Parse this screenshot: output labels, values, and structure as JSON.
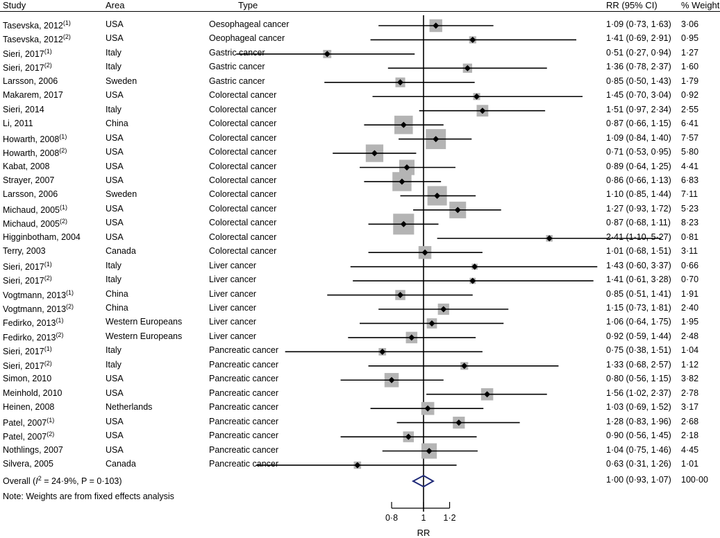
{
  "headers": {
    "study": "Study",
    "area": "Area",
    "type": "Type",
    "rr_ci": "RR (95% CI)",
    "weight": "% Weight"
  },
  "rows": [
    {
      "study": "Tasevska, 2012",
      "sup": "(1)",
      "area": "USA",
      "type": "Oesophageal cancer",
      "rr": "1·09 (0·73, 1·63)",
      "weight": "3·06"
    },
    {
      "study": "Tasevska, 2012",
      "sup": "(2)",
      "area": "USA",
      "type": "Oeophageal cancer",
      "rr": "1·41 (0·69, 2·91)",
      "weight": "0·95"
    },
    {
      "study": "Sieri, 2017",
      "sup": "(1)",
      "area": "Italy",
      "type": "Gastric cancer",
      "rr": "0·51 (0·27, 0·94)",
      "weight": "1·27"
    },
    {
      "study": "Sieri, 2017",
      "sup": "(2)",
      "area": "Italy",
      "type": "Gastric cancer",
      "rr": "1·36 (0·78, 2·37)",
      "weight": "1·60"
    },
    {
      "study": "Larsson, 2006",
      "sup": "",
      "area": "Sweden",
      "type": "Gastric cancer",
      "rr": "0·85 (0·50, 1·43)",
      "weight": "1·79"
    },
    {
      "study": "Makarem, 2017",
      "sup": "",
      "area": "USA",
      "type": "Colorectal cancer",
      "rr": "1·45 (0·70, 3·04)",
      "weight": "0·92"
    },
    {
      "study": "Sieri, 2014",
      "sup": "",
      "area": "Italy",
      "type": "Colorectal cancer",
      "rr": "1·51 (0·97, 2·34)",
      "weight": "2·55"
    },
    {
      "study": "Li, 2011",
      "sup": "",
      "area": "China",
      "type": "Colorectal cancer",
      "rr": "0·87 (0·66, 1·15)",
      "weight": "6·41"
    },
    {
      "study": "Howarth, 2008",
      "sup": "(1)",
      "area": "USA",
      "type": "Colorectal cancer",
      "rr": "1·09 (0·84, 1·40)",
      "weight": "7·57"
    },
    {
      "study": "Howarth, 2008",
      "sup": "(2)",
      "area": "USA",
      "type": "Colorectal cancer",
      "rr": "0·71 (0·53, 0·95)",
      "weight": "5·80"
    },
    {
      "study": "Kabat, 2008",
      "sup": "",
      "area": "USA",
      "type": "Colorectal cancer",
      "rr": "0·89 (0·64, 1·25)",
      "weight": "4·41"
    },
    {
      "study": "Strayer, 2007",
      "sup": "",
      "area": "USA",
      "type": "Colorectal cancer",
      "rr": "0·86 (0·66, 1·13)",
      "weight": "6·83"
    },
    {
      "study": "Larsson, 2006",
      "sup": "",
      "area": "Sweden",
      "type": "Colorectal cancer",
      "rr": "1·10 (0·85, 1·44)",
      "weight": "7·11"
    },
    {
      "study": "Michaud, 2005",
      "sup": "(1)",
      "area": "USA",
      "type": "Colorectal cancer",
      "rr": "1·27 (0·93, 1·72)",
      "weight": "5·23"
    },
    {
      "study": "Michaud, 2005",
      "sup": "(2)",
      "area": "USA",
      "type": "Colorectal cancer",
      "rr": "0·87 (0·68, 1·11)",
      "weight": "8·23"
    },
    {
      "study": "Higginbotham, 2004",
      "sup": "",
      "area": "USA",
      "type": "Colorectal cancer",
      "rr": "2·41 (1·10, 5·27)",
      "weight": "0·81"
    },
    {
      "study": "Terry, 2003",
      "sup": "",
      "area": "Canada",
      "type": "Colorectal cancer",
      "rr": "1·01 (0·68, 1·51)",
      "weight": "3·11"
    },
    {
      "study": "Sieri, 2017",
      "sup": "(1)",
      "area": "Italy",
      "type": "Liver cancer",
      "rr": "1·43 (0·60, 3·37)",
      "weight": "0·66"
    },
    {
      "study": "Sieri, 2017",
      "sup": "(2)",
      "area": "Italy",
      "type": "Liver cancer",
      "rr": "1·41 (0·61, 3·28)",
      "weight": "0·70"
    },
    {
      "study": "Vogtmann, 2013",
      "sup": "(1)",
      "area": "China",
      "type": "Liver cancer",
      "rr": "0·85 (0·51, 1·41)",
      "weight": "1·91"
    },
    {
      "study": "Vogtmann, 2013",
      "sup": "(2)",
      "area": "China",
      "type": "Liver cancer",
      "rr": "1·15 (0·73, 1·81)",
      "weight": "2·40"
    },
    {
      "study": "Fedirko, 2013",
      "sup": "(1)",
      "area": "Western Europeans",
      "type": "Liver cancer",
      "rr": "1·06 (0·64, 1·75)",
      "weight": "1·95"
    },
    {
      "study": "Fedirko, 2013",
      "sup": "(2)",
      "area": "Western Europeans",
      "type": "Liver cancer",
      "rr": "0·92 (0·59, 1·44)",
      "weight": "2·48"
    },
    {
      "study": "Sieri, 2017",
      "sup": "(1)",
      "area": "Italy",
      "type": "Pancreatic cancer",
      "rr": "0·75 (0·38, 1·51)",
      "weight": "1·04"
    },
    {
      "study": "Sieri, 2017",
      "sup": "(2)",
      "area": "Italy",
      "type": "Pancreatic cancer",
      "rr": "1·33 (0·68, 2·57)",
      "weight": "1·12"
    },
    {
      "study": "Simon, 2010",
      "sup": "",
      "area": "USA",
      "type": "Pancreatic cancer",
      "rr": "0·80 (0·56, 1·15)",
      "weight": "3·82"
    },
    {
      "study": "Meinhold, 2010",
      "sup": "",
      "area": "USA",
      "type": "Pancreatic cancer",
      "rr": "1·56 (1·02, 2·37)",
      "weight": "2·78"
    },
    {
      "study": "Heinen, 2008",
      "sup": "",
      "area": "Netherlands",
      "type": "Pancreatic cancer",
      "rr": "1·03 (0·69, 1·52)",
      "weight": "3·17"
    },
    {
      "study": "Patel, 2007",
      "sup": "(1)",
      "area": "USA",
      "type": "Pancreatic cancer",
      "rr": "1·28 (0·83, 1·96)",
      "weight": "2·68"
    },
    {
      "study": "Patel, 2007",
      "sup": "(2)",
      "area": "USA",
      "type": "Pancreatic cancer",
      "rr": "0·90 (0·56, 1·45)",
      "weight": "2·18"
    },
    {
      "study": "Nothlings, 2007",
      "sup": "",
      "area": "USA",
      "type": "Pancreatic cancer",
      "rr": "1·04 (0·75, 1·46)",
      "weight": "4·45"
    },
    {
      "study": "Silvera, 2005",
      "sup": "",
      "area": "Canada",
      "type": "Pancreatic cancer",
      "rr": "0·63 (0·31, 1·26)",
      "weight": "1·01"
    }
  ],
  "overall": {
    "label_pre": "Overall (",
    "i2": "I",
    "i2_sup": "2",
    "label_post": " = 24·9%, P = 0·103)",
    "rr": "1·00 (0·93, 1·07)",
    "weight": "100·00"
  },
  "note": "Note: Weights are from fixed effects analysis",
  "chart_data": {
    "type": "forest",
    "xlabel": "RR",
    "ticks": [
      {
        "value": 0.8,
        "label": "0·8"
      },
      {
        "value": 1,
        "label": "1"
      },
      {
        "value": 1.2,
        "label": "1·2"
      }
    ],
    "reference_line": 1,
    "estimates": [
      {
        "rr": 1.09,
        "lo": 0.73,
        "hi": 1.63,
        "w": 3.06
      },
      {
        "rr": 1.41,
        "lo": 0.69,
        "hi": 2.91,
        "w": 0.95
      },
      {
        "rr": 0.51,
        "lo": 0.27,
        "hi": 0.94,
        "w": 1.27
      },
      {
        "rr": 1.36,
        "lo": 0.78,
        "hi": 2.37,
        "w": 1.6
      },
      {
        "rr": 0.85,
        "lo": 0.5,
        "hi": 1.43,
        "w": 1.79
      },
      {
        "rr": 1.45,
        "lo": 0.7,
        "hi": 3.04,
        "w": 0.92
      },
      {
        "rr": 1.51,
        "lo": 0.97,
        "hi": 2.34,
        "w": 2.55
      },
      {
        "rr": 0.87,
        "lo": 0.66,
        "hi": 1.15,
        "w": 6.41
      },
      {
        "rr": 1.09,
        "lo": 0.84,
        "hi": 1.4,
        "w": 7.57
      },
      {
        "rr": 0.71,
        "lo": 0.53,
        "hi": 0.95,
        "w": 5.8
      },
      {
        "rr": 0.89,
        "lo": 0.64,
        "hi": 1.25,
        "w": 4.41
      },
      {
        "rr": 0.86,
        "lo": 0.66,
        "hi": 1.13,
        "w": 6.83
      },
      {
        "rr": 1.1,
        "lo": 0.85,
        "hi": 1.44,
        "w": 7.11
      },
      {
        "rr": 1.27,
        "lo": 0.93,
        "hi": 1.72,
        "w": 5.23
      },
      {
        "rr": 0.87,
        "lo": 0.68,
        "hi": 1.11,
        "w": 8.23
      },
      {
        "rr": 2.41,
        "lo": 1.1,
        "hi": 5.27,
        "w": 0.81
      },
      {
        "rr": 1.01,
        "lo": 0.68,
        "hi": 1.51,
        "w": 3.11
      },
      {
        "rr": 1.43,
        "lo": 0.6,
        "hi": 3.37,
        "w": 0.66
      },
      {
        "rr": 1.41,
        "lo": 0.61,
        "hi": 3.28,
        "w": 0.7
      },
      {
        "rr": 0.85,
        "lo": 0.51,
        "hi": 1.41,
        "w": 1.91
      },
      {
        "rr": 1.15,
        "lo": 0.73,
        "hi": 1.81,
        "w": 2.4
      },
      {
        "rr": 1.06,
        "lo": 0.64,
        "hi": 1.75,
        "w": 1.95
      },
      {
        "rr": 0.92,
        "lo": 0.59,
        "hi": 1.44,
        "w": 2.48
      },
      {
        "rr": 0.75,
        "lo": 0.38,
        "hi": 1.51,
        "w": 1.04
      },
      {
        "rr": 1.33,
        "lo": 0.68,
        "hi": 2.57,
        "w": 1.12
      },
      {
        "rr": 0.8,
        "lo": 0.56,
        "hi": 1.15,
        "w": 3.82
      },
      {
        "rr": 1.56,
        "lo": 1.02,
        "hi": 2.37,
        "w": 2.78
      },
      {
        "rr": 1.03,
        "lo": 0.69,
        "hi": 1.52,
        "w": 3.17
      },
      {
        "rr": 1.28,
        "lo": 0.83,
        "hi": 1.96,
        "w": 2.68
      },
      {
        "rr": 0.9,
        "lo": 0.56,
        "hi": 1.45,
        "w": 2.18
      },
      {
        "rr": 1.04,
        "lo": 0.75,
        "hi": 1.46,
        "w": 4.45
      },
      {
        "rr": 0.63,
        "lo": 0.31,
        "hi": 1.26,
        "w": 1.01
      }
    ],
    "overall": {
      "rr": 1.0,
      "lo": 0.93,
      "hi": 1.07,
      "w": 100.0
    },
    "colors": {
      "box": "#b4b4b4",
      "diamond": "#1f2a78",
      "line": "#000000"
    }
  }
}
